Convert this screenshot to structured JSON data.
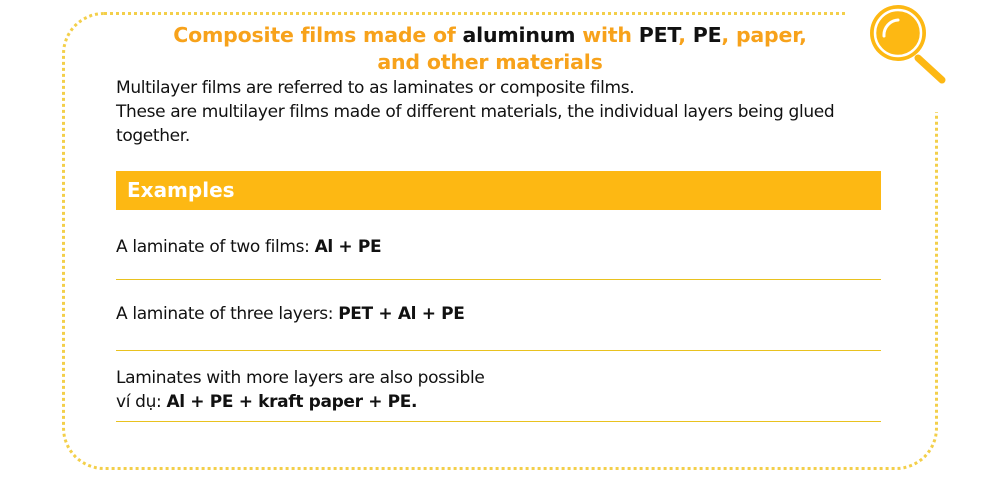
{
  "title": {
    "p1": "Composite films made of ",
    "p2": "aluminum",
    "p3": " with ",
    "p4": "PET",
    "p5": ", ",
    "p6": "PE",
    "p7": ", paper,",
    "p8": "and other materials"
  },
  "intro": {
    "line1": "Multilayer films are referred to as laminates or composite films.",
    "line2": "These are multilayer films made of different materials, the individual layers being glued together."
  },
  "examples": {
    "heading": "Examples",
    "items": [
      {
        "text": "A laminate of two films: ",
        "bold": "Al + PE"
      },
      {
        "text": "A laminate of three layers: ",
        "bold": "PET + Al + PE"
      },
      {
        "text": "Laminates with more layers are also possible",
        "text2": "ví dụ: ",
        "bold": "Al + PE + kraft paper + PE."
      }
    ]
  },
  "icon": "magnifier-icon",
  "colors": {
    "accent": "#fdb813",
    "title_orange": "#f7a21b",
    "rule": "#e9c21f"
  }
}
